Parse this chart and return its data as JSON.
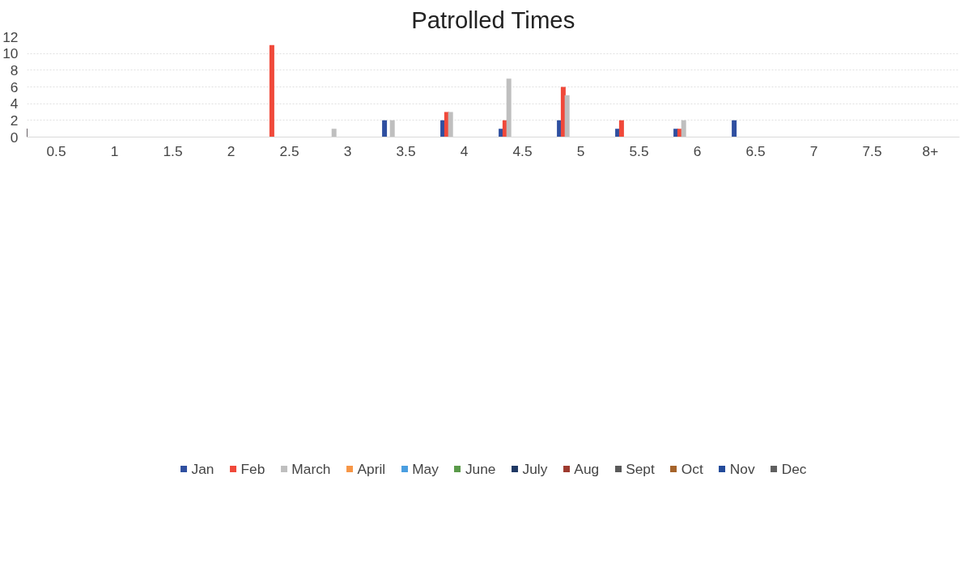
{
  "chart_data": {
    "type": "bar",
    "title": "Patrolled Times",
    "categories": [
      "0.5",
      "1",
      "1.5",
      "2",
      "2.5",
      "3",
      "3.5",
      "4",
      "4.5",
      "5",
      "5.5",
      "6",
      "6.5",
      "7",
      "7.5",
      "8+"
    ],
    "series": [
      {
        "name": "Jan",
        "color": "#2f4fa0",
        "values": [
          null,
          null,
          null,
          null,
          null,
          null,
          2,
          2,
          1,
          2,
          1,
          1,
          2,
          null,
          null,
          null
        ]
      },
      {
        "name": "Feb",
        "color": "#f0493a",
        "values": [
          null,
          null,
          null,
          null,
          11,
          null,
          null,
          3,
          2,
          6,
          2,
          1,
          null,
          null,
          null,
          null
        ]
      },
      {
        "name": "March",
        "color": "#bfbfbf",
        "values": [
          null,
          null,
          null,
          null,
          null,
          1,
          2,
          3,
          7,
          5,
          null,
          2,
          null,
          null,
          null,
          null
        ]
      },
      {
        "name": "April",
        "color": "#f79646",
        "values": [
          null,
          null,
          null,
          null,
          null,
          null,
          null,
          null,
          null,
          null,
          null,
          null,
          null,
          null,
          null,
          null
        ]
      },
      {
        "name": "May",
        "color": "#4a9ee0",
        "values": [
          null,
          null,
          null,
          null,
          null,
          null,
          null,
          null,
          null,
          null,
          null,
          null,
          null,
          null,
          null,
          null
        ]
      },
      {
        "name": "June",
        "color": "#5a9a4a",
        "values": [
          null,
          null,
          null,
          null,
          null,
          null,
          null,
          null,
          null,
          null,
          null,
          null,
          null,
          null,
          null,
          null
        ]
      },
      {
        "name": "July",
        "color": "#1f3864",
        "values": [
          null,
          null,
          null,
          null,
          null,
          null,
          null,
          null,
          null,
          null,
          null,
          null,
          null,
          null,
          null,
          null
        ]
      },
      {
        "name": "Aug",
        "color": "#9e3a2e",
        "values": [
          null,
          null,
          null,
          null,
          null,
          null,
          null,
          null,
          null,
          null,
          null,
          null,
          null,
          null,
          null,
          null
        ]
      },
      {
        "name": "Sept",
        "color": "#595959",
        "values": [
          null,
          null,
          null,
          null,
          null,
          null,
          null,
          null,
          null,
          null,
          null,
          null,
          null,
          null,
          null,
          null
        ]
      },
      {
        "name": "Oct",
        "color": "#a5632a",
        "values": [
          null,
          null,
          null,
          null,
          null,
          null,
          null,
          null,
          null,
          null,
          null,
          null,
          null,
          null,
          null,
          null
        ]
      },
      {
        "name": "Nov",
        "color": "#224a9a",
        "values": [
          null,
          null,
          null,
          null,
          null,
          null,
          null,
          null,
          null,
          null,
          null,
          null,
          null,
          null,
          null,
          null
        ]
      },
      {
        "name": "Dec",
        "color": "#5f5f5f",
        "values": [
          null,
          null,
          null,
          null,
          null,
          null,
          null,
          null,
          null,
          null,
          null,
          null,
          null,
          null,
          null,
          null
        ]
      }
    ],
    "ylim": [
      0,
      12
    ],
    "yticks": [
      0,
      2,
      4,
      6,
      8,
      10,
      12
    ],
    "grid": "y",
    "legend": "bottom"
  }
}
